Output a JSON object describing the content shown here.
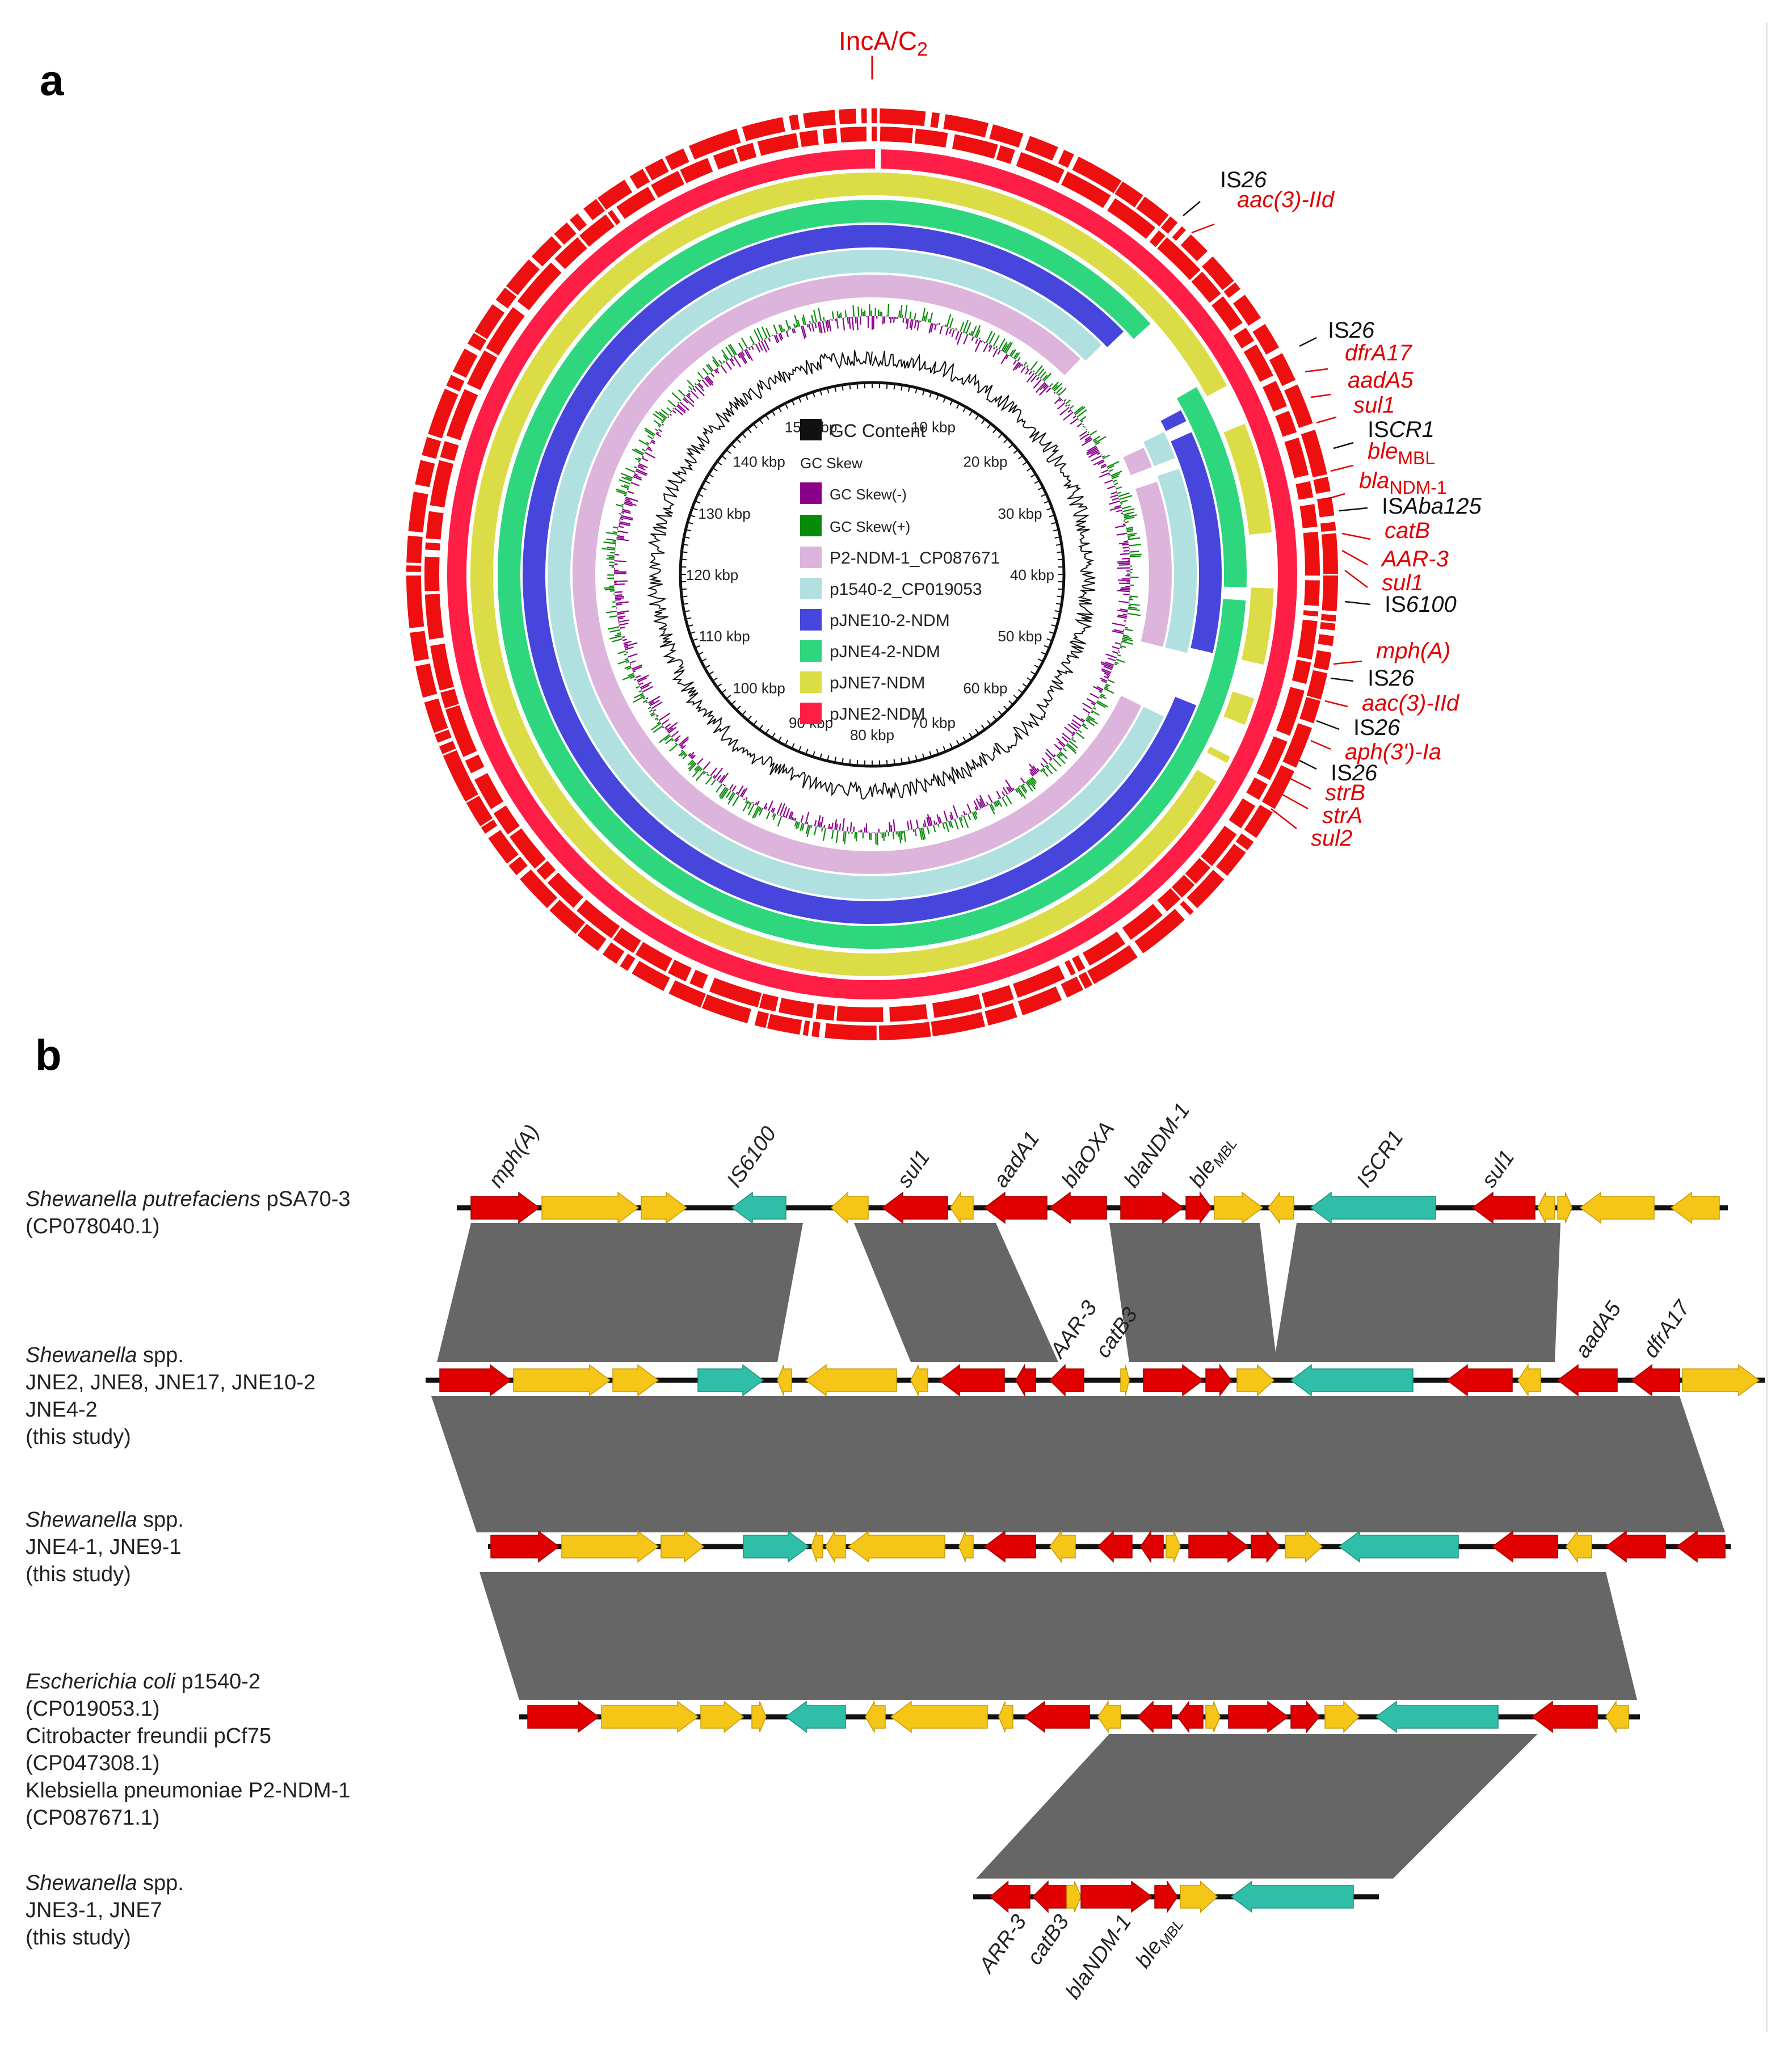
{
  "panel_a": {
    "letter": "a",
    "top_label": "IncA/C",
    "top_label_sub": "2",
    "kbp_ticks": [
      "10 kbp",
      "20 kbp",
      "30 kbp",
      "40 kbp",
      "50 kbp",
      "60 kbp",
      "70 kbp",
      "80 kbp",
      "90 kbp",
      "100 kbp",
      "110 kbp",
      "120 kbp",
      "130 kbp",
      "140 kbp",
      "150 kbp"
    ],
    "legend": {
      "gc_content": "GC Content",
      "gc_skew_title": "GC Skew",
      "gc_skew_neg": "GC Skew(-)",
      "gc_skew_pos": "GC Skew(+)",
      "rings": [
        {
          "name": "P2-NDM-1_CP087671",
          "color": "#dcb4dc"
        },
        {
          "name": "p1540-2_CP019053",
          "color": "#b0e0e0"
        },
        {
          "name": "pJNE10-2-NDM",
          "color": "#4646dc"
        },
        {
          "name": "pJNE4-2-NDM",
          "color": "#2ed67e"
        },
        {
          "name": "pJNE7-NDM",
          "color": "#dcdc46"
        },
        {
          "name": "pJNE2-NDM",
          "color": "#ff1e46"
        }
      ]
    },
    "gene_labels": [
      {
        "pre": "IS",
        "it": "26",
        "color": "black"
      },
      {
        "pre": "",
        "it": "aac(3)-IId",
        "color": "red"
      },
      {
        "pre": "IS",
        "it": "26",
        "color": "black"
      },
      {
        "pre": "",
        "it": "dfrA17",
        "color": "red"
      },
      {
        "pre": "",
        "it": "aadA5",
        "color": "red"
      },
      {
        "pre": "",
        "it": "sul1",
        "color": "red"
      },
      {
        "pre": "IS",
        "it": "CR1",
        "color": "black"
      },
      {
        "pre": "",
        "it": "ble",
        "sub": "MBL",
        "color": "red"
      },
      {
        "pre": "",
        "it": "bla",
        "sub": "NDM-1",
        "color": "red"
      },
      {
        "pre": "IS",
        "it": "Aba125",
        "color": "black"
      },
      {
        "pre": "",
        "it": "catB",
        "color": "red"
      },
      {
        "pre": "",
        "it": "AAR-3",
        "color": "red"
      },
      {
        "pre": "",
        "it": "sul1",
        "color": "red"
      },
      {
        "pre": "IS",
        "it": "6100",
        "color": "black"
      },
      {
        "pre": "",
        "it": "mph(A)",
        "color": "red"
      },
      {
        "pre": "IS",
        "it": "26",
        "color": "black"
      },
      {
        "pre": "",
        "it": "aac(3)-IId",
        "color": "red"
      },
      {
        "pre": "IS",
        "it": "26",
        "color": "black"
      },
      {
        "pre": "",
        "it": "aph(3')-Ia",
        "color": "red"
      },
      {
        "pre": "IS",
        "it": "26",
        "color": "black"
      },
      {
        "pre": "",
        "it": "strB",
        "color": "red"
      },
      {
        "pre": "",
        "it": "strA",
        "color": "red"
      },
      {
        "pre": "",
        "it": "sul2",
        "color": "red"
      }
    ]
  },
  "panel_b": {
    "letter": "b",
    "tracks": [
      {
        "lines": [
          [
            {
              "t": "Shewanella putrefaciens",
              "i": true
            },
            {
              "t": "  pSA70-3",
              "i": false
            }
          ],
          [
            {
              "t": "(CP078040.1)",
              "i": false
            }
          ]
        ]
      },
      {
        "lines": [
          [
            {
              "t": "Shewanella",
              "i": true
            },
            {
              "t": " spp.",
              "i": false
            }
          ],
          [
            {
              "t": "JNE2, JNE8, JNE17, JNE10-2",
              "i": false
            }
          ],
          [
            {
              "t": "JNE4-2",
              "i": false
            }
          ],
          [
            {
              "t": "(this study)",
              "i": false
            }
          ]
        ]
      },
      {
        "lines": [
          [
            {
              "t": "Shewanella",
              "i": true
            },
            {
              "t": " spp.",
              "i": false
            }
          ],
          [
            {
              "t": "JNE4-1, JNE9-1",
              "i": false
            }
          ],
          [
            {
              "t": "(this study)",
              "i": false
            }
          ]
        ]
      },
      {
        "lines": [
          [
            {
              "t": "Escherichia coli",
              "i": true
            },
            {
              "t": " p1540-2",
              "i": false
            }
          ],
          [
            {
              "t": "(CP019053.1)",
              "i": false
            }
          ],
          [
            {
              "t": "Citrobacter freundii pCf75",
              "i": false
            }
          ],
          [
            {
              "t": "(CP047308.1)",
              "i": false
            }
          ],
          [
            {
              "t": "Klebsiella pneumoniae P2-NDM-1",
              "i": false
            }
          ],
          [
            {
              "t": "(CP087671.1)",
              "i": false
            }
          ]
        ]
      },
      {
        "lines": [
          [
            {
              "t": "Shewanella",
              "i": true
            },
            {
              "t": " spp.",
              "i": false
            }
          ],
          [
            {
              "t": "JNE3-1, JNE7",
              "i": false
            }
          ],
          [
            {
              "t": "(this study)",
              "i": false
            }
          ]
        ]
      }
    ],
    "top_gene_labels": [
      {
        "t": "mph(A)"
      },
      {
        "t": "IS6100"
      },
      {
        "t": "sul1"
      },
      {
        "t": "aadA1"
      },
      {
        "t": "blaOXA"
      },
      {
        "t": "blaNDM-1"
      },
      {
        "t": "ble",
        "sub": "MBL"
      },
      {
        "t": "ISCR1"
      },
      {
        "t": "sul1"
      }
    ],
    "track2_gene_labels": [
      {
        "t": "AAR-3"
      },
      {
        "t": "catB3"
      },
      {
        "t": "aadA5"
      },
      {
        "t": "dfrA17"
      }
    ],
    "bottom_gene_labels": [
      {
        "t": "ARR-3"
      },
      {
        "t": "catB3"
      },
      {
        "t": "blaNDM-1"
      },
      {
        "t": "ble",
        "sub": "MBL"
      }
    ],
    "colors": {
      "resistance": "#e00000",
      "other": "#f5c518",
      "mobile": "#2fbfa8",
      "homology": "#666666"
    }
  }
}
